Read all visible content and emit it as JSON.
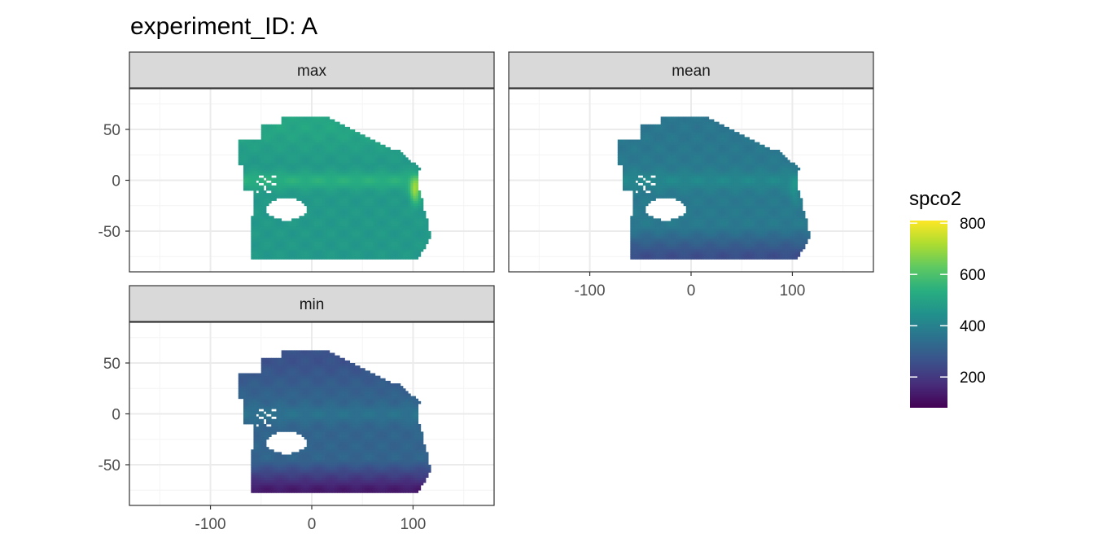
{
  "chart_data": {
    "type": "heatmap",
    "title": "experiment_ID: A",
    "xlabel": "",
    "ylabel": "",
    "xlim": [
      -180,
      180
    ],
    "ylim": [
      -90,
      90
    ],
    "x_ticks": [
      -100,
      0,
      100
    ],
    "y_ticks": [
      -50,
      0,
      50
    ],
    "grid": true,
    "facets": [
      {
        "name": "max",
        "base": 470,
        "equator_boost": 70,
        "east_boost": 220,
        "south_drop": 0,
        "north_shift": 40
      },
      {
        "name": "mean",
        "base": 375,
        "equator_boost": 45,
        "east_boost": 60,
        "south_drop": 120,
        "north_shift": -10
      },
      {
        "name": "min",
        "base": 315,
        "equator_boost": 40,
        "east_boost": 10,
        "south_drop": 180,
        "north_shift": -50
      }
    ],
    "legend": {
      "title": "spco2",
      "range": [
        80,
        810
      ],
      "ticks": [
        200,
        400,
        600,
        800
      ],
      "position": "right"
    },
    "colors": {
      "panel_border": "#333333",
      "strip_fill": "#d9d9d9",
      "grid_major": "#ebebeb",
      "grid_minor": "#f4f4f4",
      "viridis": [
        "#440154",
        "#472d7b",
        "#3b528b",
        "#2c728e",
        "#21918c",
        "#28ae80",
        "#5ec962",
        "#addc30",
        "#fde725"
      ]
    }
  }
}
